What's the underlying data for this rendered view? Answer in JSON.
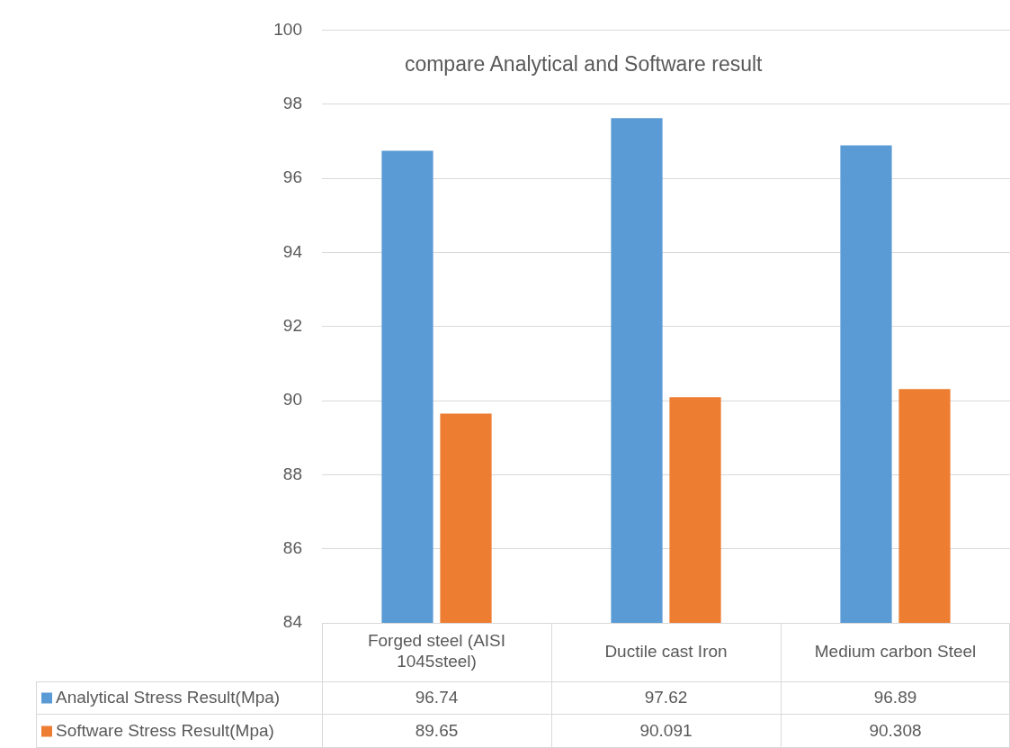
{
  "chart_data": {
    "type": "bar",
    "title": "compare Analytical and Software result",
    "categories": [
      "Forged steel (AISI 1045steel)",
      "Ductile cast Iron",
      "Medium carbon Steel"
    ],
    "series": [
      {
        "name": "Analytical Stress Result(Mpa)",
        "color": "#5b9bd5",
        "values": [
          96.74,
          97.62,
          96.89
        ]
      },
      {
        "name": "Software Stress Result(Mpa)",
        "color": "#ed7d31",
        "values": [
          89.65,
          90.091,
          90.308
        ]
      }
    ],
    "ylim": [
      84,
      100
    ],
    "yticks": [
      84,
      86,
      88,
      90,
      92,
      94,
      96,
      98,
      100
    ],
    "grid": "y",
    "legend": "bottom",
    "data_labels": true
  }
}
